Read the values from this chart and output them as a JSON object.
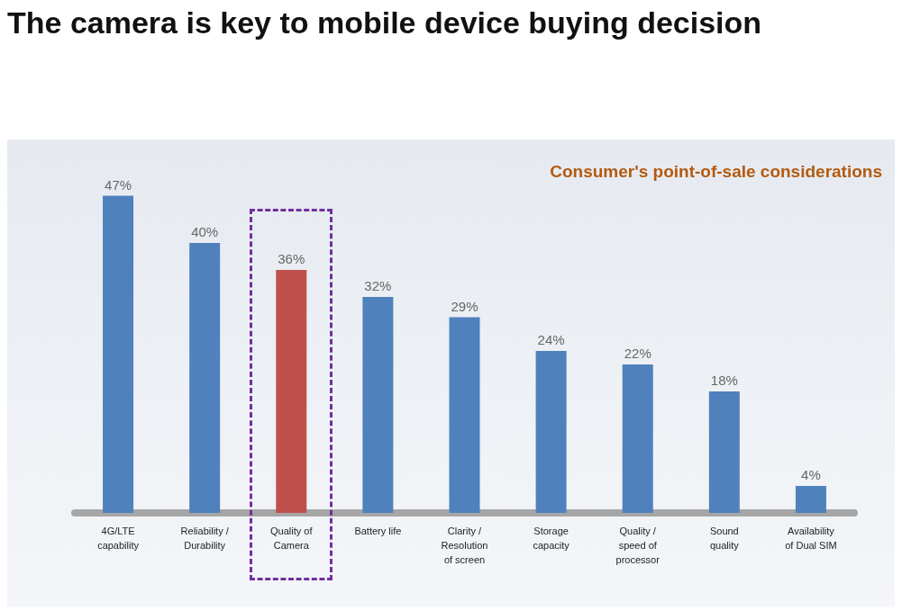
{
  "chart_data": {
    "type": "bar",
    "title": "The camera is key to mobile device buying decision",
    "subtitle": "Consumer's point-of-sale considerations",
    "categories": [
      "4G/LTE\ncapability",
      "Reliability /\nDurability",
      "Quality of\nCamera",
      "Battery life",
      "Clarity /\nResolution\nof screen",
      "Storage\ncapacity",
      "Quality /\nspeed of\nprocessor",
      "Sound\nquality",
      "Availability\nof Dual SIM"
    ],
    "values": [
      47,
      40,
      36,
      32,
      29,
      24,
      22,
      18,
      4
    ],
    "colors": [
      "#4f81bd",
      "#4f81bd",
      "#c0504d",
      "#4f81bd",
      "#4f81bd",
      "#4f81bd",
      "#4f81bd",
      "#4f81bd",
      "#4f81bd"
    ],
    "value_labels": [
      "47%",
      "40%",
      "36%",
      "32%",
      "29%",
      "24%",
      "22%",
      "18%",
      "4%"
    ]
  }
}
